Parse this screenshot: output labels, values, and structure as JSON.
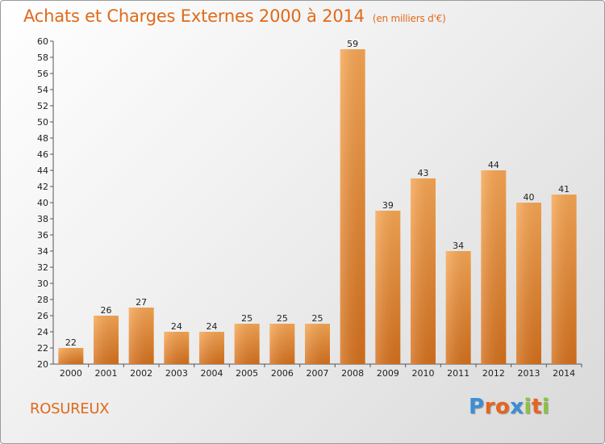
{
  "header": {
    "title": "Achats et Charges Externes 2000 à 2014",
    "unit": "(en milliers d'€)"
  },
  "footer": {
    "city": "ROSUREUX",
    "brand": "Proxiti",
    "brand_letters": [
      {
        "ch": "P",
        "color": "#3a8fd6"
      },
      {
        "ch": "r",
        "color": "#e8641c"
      },
      {
        "ch": "o",
        "color": "#e8641c"
      },
      {
        "ch": "x",
        "color": "#3a8fd6"
      },
      {
        "ch": "i",
        "color": "#8ac43f"
      },
      {
        "ch": "t",
        "color": "#e8641c"
      },
      {
        "ch": "i",
        "color": "#8ac43f"
      }
    ]
  },
  "colors": {
    "accent": "#e06a1a",
    "bar_light": "#f7a653",
    "bar_dark": "#d8731f"
  },
  "chart_data": {
    "type": "bar",
    "title": "Achats et Charges Externes 2000 à 2014",
    "subtitle": "(en milliers d'€)",
    "categories": [
      "2000",
      "2001",
      "2002",
      "2003",
      "2004",
      "2005",
      "2006",
      "2007",
      "2008",
      "2009",
      "2010",
      "2011",
      "2012",
      "2013",
      "2014"
    ],
    "values": [
      22,
      26,
      27,
      24,
      24,
      25,
      25,
      25,
      59,
      39,
      43,
      34,
      44,
      40,
      41
    ],
    "ylim": [
      20,
      60
    ],
    "yticks": [
      20,
      22,
      24,
      26,
      28,
      30,
      32,
      34,
      36,
      38,
      40,
      42,
      44,
      46,
      48,
      50,
      52,
      54,
      56,
      58,
      60
    ],
    "grid": false,
    "data_labels": true
  }
}
